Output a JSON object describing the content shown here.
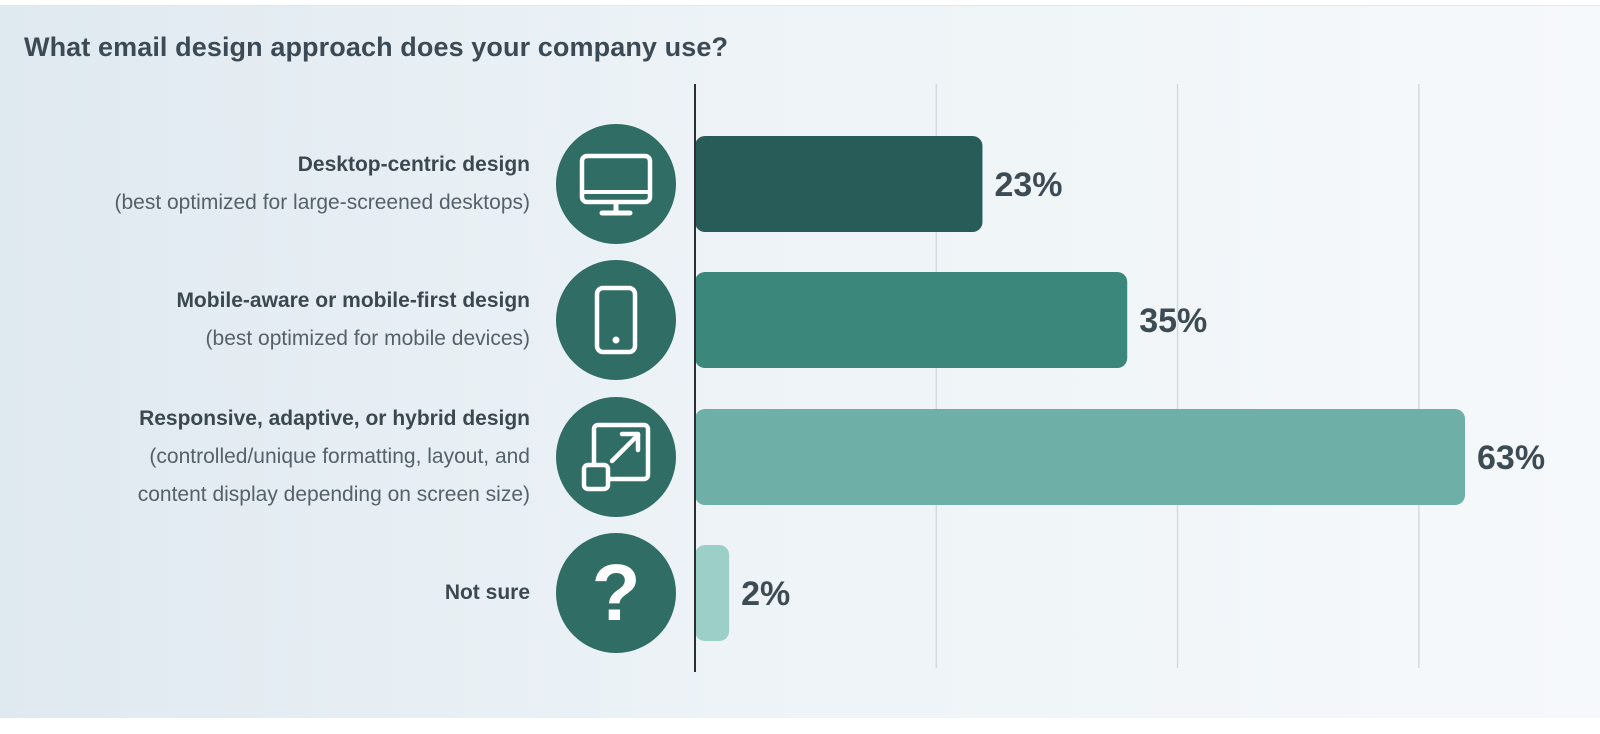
{
  "title": "What email design approach does your company use?",
  "chart_data": {
    "type": "bar",
    "orientation": "horizontal",
    "xlim": [
      0,
      70
    ],
    "grid": true,
    "categories": [
      {
        "title": "Desktop-centric design",
        "subtitle": [
          "(best optimized for large-screened desktops)"
        ],
        "value": 23,
        "label": "23%",
        "color": "#285c59",
        "icon": "desktop-monitor-icon"
      },
      {
        "title": "Mobile-aware or mobile-first design",
        "subtitle": [
          "(best optimized for mobile devices)"
        ],
        "value": 35,
        "label": "35%",
        "color": "#3b877b",
        "icon": "mobile-phone-icon"
      },
      {
        "title": "Responsive, adaptive, or hybrid design",
        "subtitle": [
          "(controlled/unique formatting, layout, and",
          "content display depending on screen size)"
        ],
        "value": 63,
        "label": "63%",
        "color": "#6eb0a7",
        "icon": "resize-expand-icon"
      },
      {
        "title": "Not sure",
        "subtitle": [],
        "value": 2,
        "label": "2%",
        "color": "#9ccfc7",
        "icon": "question-mark-icon"
      }
    ],
    "icon_circle_color": "#2f6d65"
  }
}
